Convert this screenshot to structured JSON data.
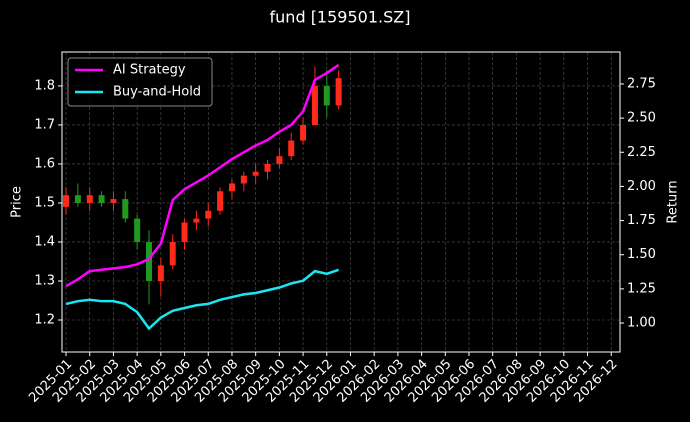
{
  "chart_data": {
    "type": "candlestick",
    "title": "fund [159501.SZ]",
    "ylabel": "Price",
    "y2label": "Return",
    "x": [
      0,
      0.5,
      1,
      1.5,
      2,
      2.5,
      3,
      3.5,
      4,
      4.5,
      5,
      5.5,
      6,
      6.5,
      7,
      7.5,
      8,
      8.5,
      9,
      9.5,
      10,
      10.5,
      11,
      11.5
    ],
    "open": [
      1.49,
      1.52,
      1.5,
      1.52,
      1.5,
      1.51,
      1.46,
      1.4,
      1.3,
      1.34,
      1.4,
      1.45,
      1.46,
      1.48,
      1.53,
      1.55,
      1.57,
      1.58,
      1.6,
      1.62,
      1.66,
      1.7,
      1.8,
      1.75
    ],
    "high": [
      1.54,
      1.55,
      1.54,
      1.53,
      1.53,
      1.53,
      1.47,
      1.43,
      1.36,
      1.42,
      1.46,
      1.48,
      1.5,
      1.54,
      1.56,
      1.58,
      1.6,
      1.61,
      1.64,
      1.68,
      1.72,
      1.85,
      1.84,
      1.84
    ],
    "low": [
      1.47,
      1.49,
      1.48,
      1.49,
      1.48,
      1.45,
      1.38,
      1.24,
      1.26,
      1.33,
      1.38,
      1.43,
      1.44,
      1.47,
      1.51,
      1.53,
      1.55,
      1.56,
      1.59,
      1.61,
      1.65,
      1.7,
      1.72,
      1.74
    ],
    "close": [
      1.52,
      1.5,
      1.52,
      1.5,
      1.51,
      1.46,
      1.4,
      1.3,
      1.34,
      1.4,
      1.45,
      1.46,
      1.48,
      1.53,
      1.55,
      1.57,
      1.58,
      1.6,
      1.62,
      1.66,
      1.7,
      1.8,
      1.75,
      1.82
    ],
    "up_color": "#ff2a1a",
    "down_color": "#1f9a1f",
    "series": [
      {
        "name": "AI Strategy",
        "color": "#ff00ff",
        "axis": "y2",
        "values": [
          1.27,
          1.32,
          1.38,
          1.39,
          1.4,
          1.41,
          1.43,
          1.47,
          1.58,
          1.9,
          1.98,
          2.03,
          2.08,
          2.14,
          2.2,
          2.25,
          2.3,
          2.34,
          2.4,
          2.45,
          2.55,
          2.78,
          2.83,
          2.89
        ]
      },
      {
        "name": "Buy-and-Hold",
        "color": "#19e6f0",
        "axis": "y2",
        "values": [
          1.14,
          1.16,
          1.17,
          1.16,
          1.16,
          1.14,
          1.08,
          0.96,
          1.04,
          1.09,
          1.11,
          1.13,
          1.14,
          1.17,
          1.19,
          1.21,
          1.22,
          1.24,
          1.26,
          1.29,
          1.31,
          1.38,
          1.36,
          1.39
        ]
      }
    ],
    "xlim": [
      -0.17,
      23.37
    ],
    "xticks": [
      {
        "value": 0,
        "label": "2025-01"
      },
      {
        "value": 1,
        "label": "2025-02"
      },
      {
        "value": 2,
        "label": "2025-03"
      },
      {
        "value": 3,
        "label": "2025-04"
      },
      {
        "value": 4,
        "label": "2025-05"
      },
      {
        "value": 5,
        "label": "2025-06"
      },
      {
        "value": 6,
        "label": "2025-07"
      },
      {
        "value": 7,
        "label": "2025-08"
      },
      {
        "value": 8,
        "label": "2025-09"
      },
      {
        "value": 9,
        "label": "2025-10"
      },
      {
        "value": 10,
        "label": "2025-11"
      },
      {
        "value": 11,
        "label": "2025-12"
      },
      {
        "value": 12,
        "label": "2026-01"
      },
      {
        "value": 13,
        "label": "2026-02"
      },
      {
        "value": 14,
        "label": "2026-03"
      },
      {
        "value": 15,
        "label": "2026-04"
      },
      {
        "value": 16,
        "label": "2026-05"
      },
      {
        "value": 17,
        "label": "2026-06"
      },
      {
        "value": 18,
        "label": "2026-07"
      },
      {
        "value": 19,
        "label": "2026-08"
      },
      {
        "value": 20,
        "label": "2026-09"
      },
      {
        "value": 21,
        "label": "2026-10"
      },
      {
        "value": 22,
        "label": "2026-11"
      },
      {
        "value": 23,
        "label": "2026-12"
      }
    ],
    "ylim": [
      1.118,
      1.887
    ],
    "yticks": [
      1.2,
      1.3,
      1.4,
      1.5,
      1.6,
      1.7,
      1.8
    ],
    "y2lim": [
      0.788,
      2.984
    ],
    "y2ticks": [
      {
        "value": 1,
        "label": "1.00"
      },
      1.25,
      {
        "value": 1.5,
        "label": "1.50"
      },
      1.75,
      {
        "value": 2,
        "label": "2.00"
      },
      2.25,
      {
        "value": 2.5,
        "label": "2.50"
      },
      2.75
    ],
    "grid": true,
    "legend": "upper left"
  }
}
